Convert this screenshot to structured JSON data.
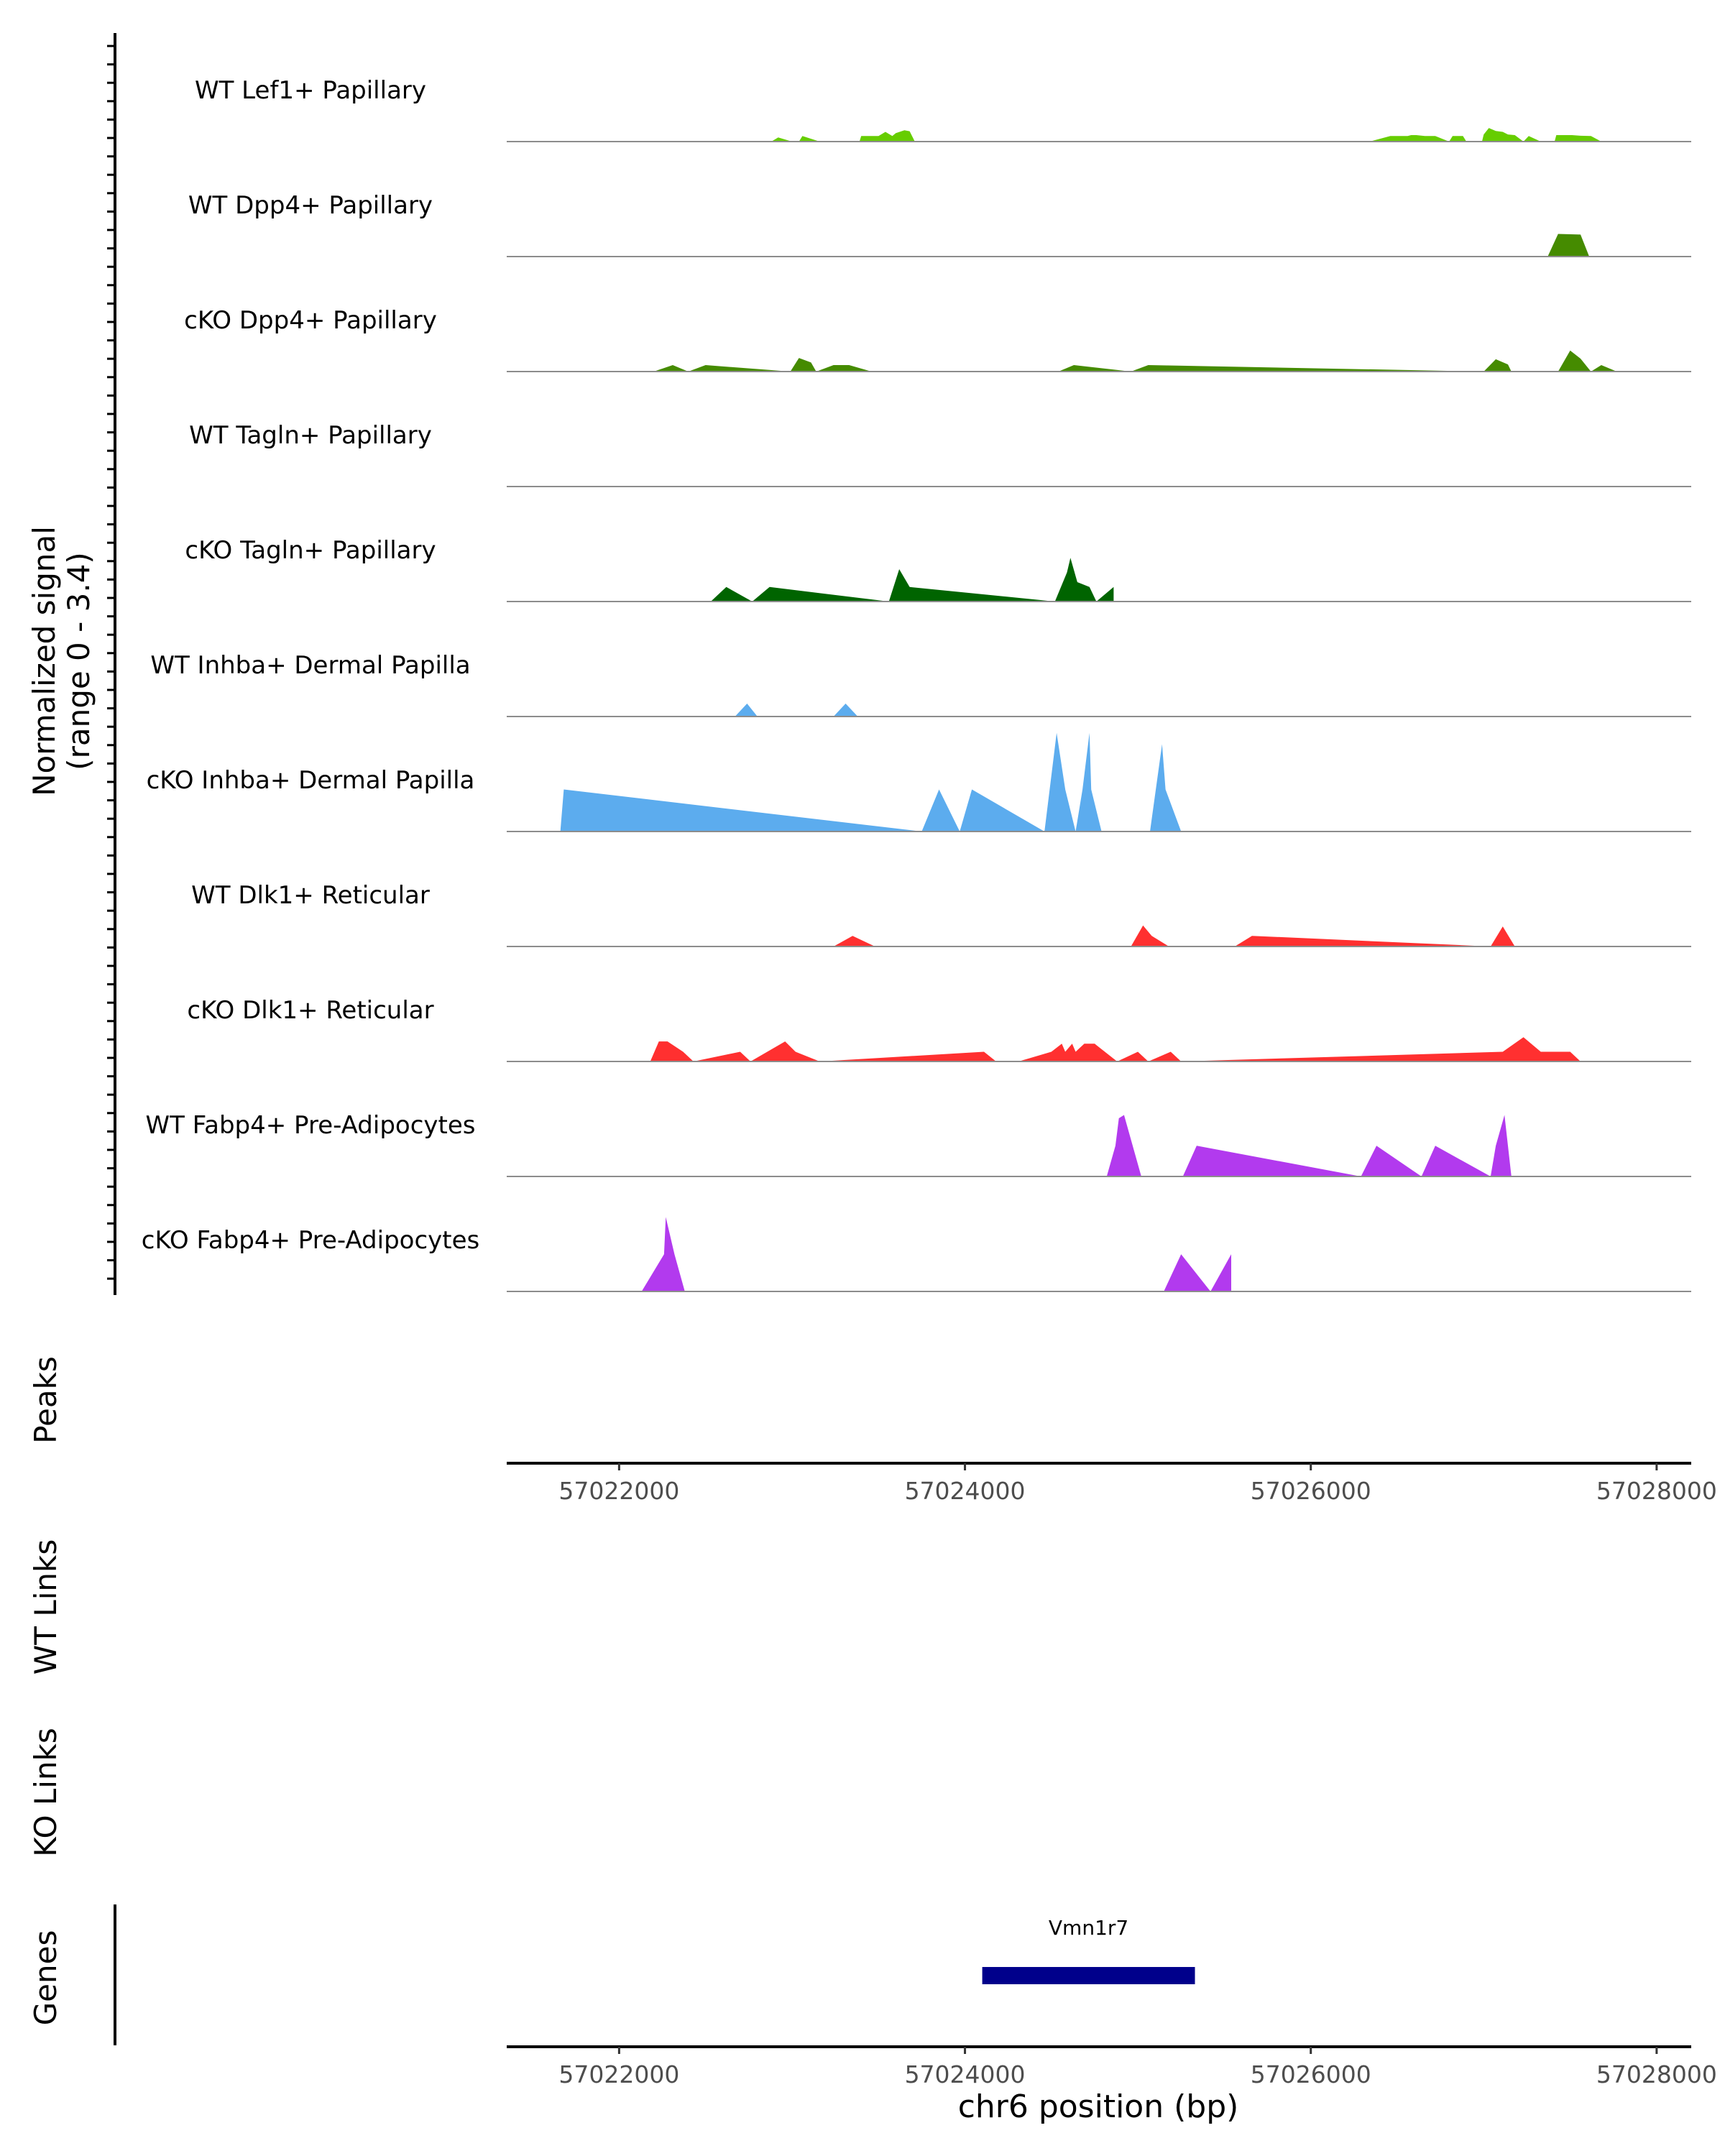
{
  "chart_data": {
    "type": "area",
    "title": "",
    "signal_axis_label": [
      "Normalized signal",
      "(range 0 - 3.4)"
    ],
    "signal_range": [
      0,
      3.4
    ],
    "xlabel": "chr6 position (bp)",
    "xlim": [
      57021350,
      57028200
    ],
    "xticks": [
      57022000,
      57024000,
      57026000,
      57028000
    ],
    "xtick_labels": [
      "57022000",
      "57024000",
      "57026000",
      "57028000"
    ],
    "peaks_label": "Peaks",
    "wt_links_label": "WT Links",
    "ko_links_label": "KO Links",
    "genes_label": "Genes",
    "genes": [
      {
        "name": "Vmn1r7",
        "start": 57024100,
        "end": 57025330,
        "color": "#00008B"
      }
    ],
    "tracks": [
      {
        "name": "WT Lef1+ Papillary",
        "color": "#66CD00",
        "x": [
          57022880,
          57022920,
          57023000,
          57023040,
          57023060,
          57023160,
          57023390,
          57023400,
          57023500,
          57023540,
          57023580,
          57023600,
          57023650,
          57023680,
          57023710,
          57026340,
          57026460,
          57026560,
          57026580,
          57026610,
          57026660,
          57026720,
          57026800,
          57026820,
          57026880,
          57026900,
          57026990,
          57027000,
          57027030,
          57027070,
          57027110,
          57027140,
          57027180,
          57027230,
          57027260,
          57027330,
          57027410,
          57027420,
          57027510,
          57027560,
          57027620,
          57027680
        ],
        "y": [
          0,
          0.13,
          0,
          0,
          0.17,
          0,
          0,
          0.17,
          0.17,
          0.3,
          0.17,
          0.26,
          0.35,
          0.32,
          0,
          0,
          0.17,
          0.17,
          0.2,
          0.2,
          0.17,
          0.17,
          0,
          0.17,
          0.17,
          0,
          0,
          0.22,
          0.42,
          0.33,
          0.3,
          0.22,
          0.2,
          0,
          0.17,
          0,
          0,
          0.2,
          0.2,
          0.18,
          0.17,
          0
        ],
        "fill": "#66CD00"
      },
      {
        "name": "WT Dpp4+ Papillary",
        "color": "#458B00",
        "x": [
          57027370,
          57027430,
          57027560,
          57027610
        ],
        "y": [
          0,
          0.7,
          0.68,
          0
        ],
        "fill": "#458B00"
      },
      {
        "name": "cKO Dpp4+ Papillary",
        "color": "#458B00",
        "x": [
          57022200,
          57022310,
          57022400,
          57022500,
          57022990,
          57023040,
          57023110,
          57023140,
          57023240,
          57023300,
          57023330,
          57023460,
          57024540,
          57024630,
          57024960,
          57025060,
          57027000,
          57027070,
          57027140,
          57027160,
          57027430,
          57027500,
          57027560,
          57027620,
          57027680,
          57027770
        ],
        "y": [
          0,
          0.2,
          0,
          0.2,
          0,
          0.42,
          0.28,
          0,
          0.2,
          0.2,
          0.2,
          0,
          0,
          0.2,
          0,
          0.2,
          0,
          0.38,
          0.22,
          0,
          0,
          0.65,
          0.4,
          0,
          0.2,
          0
        ],
        "fill": "#458B00"
      },
      {
        "name": "WT Tagln+ Papillary",
        "color": "#006400",
        "x": [],
        "y": [],
        "fill": "#006400"
      },
      {
        "name": "cKO Tagln+ Papillary",
        "color": "#006400",
        "x": [
          57022530,
          57022620,
          57022770,
          57022870,
          57023560,
          57023620,
          57023680,
          57024520,
          57024590,
          57024610,
          57024650,
          57024720,
          57024760,
          57024860
        ],
        "y": [
          0,
          0.45,
          0,
          0.45,
          0,
          1.0,
          0.45,
          0,
          0.9,
          1.35,
          0.6,
          0.45,
          0,
          0.45
        ],
        "fill": "#006400"
      },
      {
        "name": "WT Inhba+ Dermal Papilla",
        "color": "#5CACEE",
        "x": [
          57022670,
          57022740,
          57022800,
          57023240,
          57023310,
          57023380
        ],
        "y": [
          0,
          0.4,
          0,
          0,
          0.4,
          0
        ],
        "fill": "#5CACEE"
      },
      {
        "name": "cKO Inhba+ Dermal Papilla",
        "color": "#5CACEE",
        "x": [
          57021660,
          57021680,
          57023750,
          57023850,
          57023970,
          57024040,
          57024460,
          57024530,
          57024580,
          57024640,
          57024680,
          57024720,
          57024730,
          57024790,
          57025070,
          57025140,
          57025160,
          57025250
        ],
        "y": [
          0,
          1.3,
          0,
          1.3,
          0,
          1.3,
          0,
          3.05,
          1.3,
          0,
          1.3,
          3.05,
          1.3,
          0,
          0,
          2.7,
          1.3,
          0
        ],
        "fill": "#5CACEE"
      },
      {
        "name": "WT Dlk1+ Reticular",
        "color": "#FF3030",
        "x": [
          57023240,
          57023350,
          57023480,
          57024960,
          57025030,
          57025080,
          57025180,
          57025560,
          57025660,
          57027040,
          57027110,
          57027180
        ],
        "y": [
          0,
          0.33,
          0,
          0,
          0.65,
          0.33,
          0,
          0,
          0.33,
          0,
          0.62,
          0
        ],
        "fill": "#FF3030"
      },
      {
        "name": "cKO Dlk1+ Reticular",
        "color": "#FF3030",
        "x": [
          57022180,
          57022230,
          57022280,
          57022370,
          57022430,
          57022700,
          57022760,
          57022960,
          57023020,
          57023160,
          57024110,
          57024180,
          57024310,
          57024500,
          57024560,
          57024580,
          57024620,
          57024640,
          57024690,
          57024750,
          57024880,
          57025000,
          57025060,
          57025190,
          57025250,
          57027110,
          57027230,
          57027330,
          57027500,
          57027560
        ],
        "y": [
          0,
          0.62,
          0.62,
          0.3,
          0,
          0.3,
          0,
          0.62,
          0.3,
          0,
          0.3,
          0,
          0,
          0.3,
          0.55,
          0.3,
          0.55,
          0.3,
          0.55,
          0.55,
          0,
          0.3,
          0,
          0.3,
          0,
          0.3,
          0.75,
          0.3,
          0.3,
          0
        ],
        "fill": "#FF3030"
      },
      {
        "name": "WT Fabp4+ Pre-Adipocytes",
        "color": "#B23AEE",
        "x": [
          57024820,
          57024870,
          57024890,
          57024920,
          57025020,
          57025260,
          57025340,
          57026290,
          57026380,
          57026640,
          57026720,
          57027040,
          57027070,
          57027120,
          57027140,
          57027160
        ],
        "y": [
          0,
          0.95,
          1.8,
          1.9,
          0,
          0,
          0.95,
          0,
          0.95,
          0,
          0.95,
          0,
          0.95,
          1.9,
          0.95,
          0
        ],
        "fill": "#B23AEE"
      },
      {
        "name": "cKO Fabp4+ Pre-Adipocytes",
        "color": "#B23AEE",
        "x": [
          57022130,
          57022260,
          57022270,
          57022320,
          57022380,
          57025150,
          57025250,
          57025420,
          57025540
        ],
        "y": [
          0,
          1.15,
          2.3,
          1.15,
          0,
          0,
          1.15,
          0,
          1.15
        ],
        "fill": "#B23AEE"
      }
    ]
  }
}
